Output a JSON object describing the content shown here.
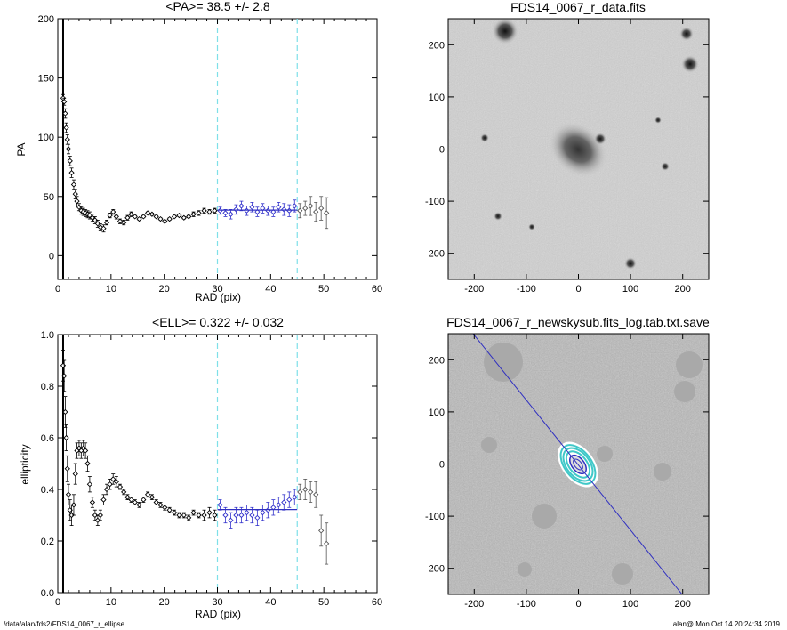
{
  "footer": {
    "left": "/data/alan/fds2/FDS14_0067_r_ellipse",
    "right": "alan@  Mon Oct 14 20:24:34 2019"
  },
  "colors": {
    "fit_line": "#3030c0",
    "range_line": "#7ee0e8",
    "contour": "#40c8c8",
    "marker": "#000000",
    "fit_marker": "#3333cc"
  },
  "chart_data": [
    {
      "type": "scatter",
      "title": "<PA>=  38.5 +/-   2.8",
      "xlabel": "RAD (pix)",
      "ylabel": "PA",
      "xlim": [
        0,
        60
      ],
      "ylim": [
        -20,
        200
      ],
      "xticks": [
        "0",
        "10",
        "20",
        "30",
        "40",
        "50",
        "60"
      ],
      "yticks": [
        "0",
        "50",
        "100",
        "150",
        "200"
      ],
      "vlines": [
        30,
        45
      ],
      "fit": {
        "x": [
          30,
          45
        ],
        "y": 38.5
      },
      "series": [
        {
          "x": [
            1.0,
            1.2,
            1.4,
            1.6,
            1.8,
            2.0,
            2.3,
            2.6,
            3.0,
            3.3,
            3.6,
            4.0,
            4.4,
            4.8,
            5.2,
            5.6,
            6.0,
            6.5,
            7.0,
            7.5,
            8.0,
            8.6,
            9.2,
            9.8,
            10.4,
            11.0,
            11.7,
            12.4,
            13.1,
            13.8,
            14.5,
            15.3,
            16.1,
            16.9,
            17.7,
            18.5,
            19.3,
            20.1,
            21.0,
            21.9,
            22.8,
            23.7,
            24.6,
            25.5,
            26.5,
            27.5,
            28.5,
            29.5
          ],
          "y": [
            133,
            130,
            120,
            108,
            98,
            90,
            80,
            70,
            60,
            52,
            46,
            41,
            38,
            37,
            36,
            35,
            34,
            32,
            30,
            27,
            24,
            23,
            28,
            34,
            37,
            33,
            29,
            28,
            32,
            35,
            33,
            31,
            33,
            36,
            35,
            33,
            31,
            29,
            31,
            33,
            34,
            32,
            33,
            35,
            36,
            38,
            37,
            38
          ],
          "err": [
            3,
            3,
            4,
            4,
            4,
            4,
            4,
            4,
            4,
            4,
            4,
            3,
            3,
            3,
            3,
            3,
            3,
            3,
            3,
            3,
            3,
            3,
            2,
            2,
            2,
            2,
            2,
            2,
            2,
            2,
            1,
            1,
            1,
            1,
            1,
            1,
            1,
            1,
            1,
            1,
            1,
            1,
            1,
            2,
            2,
            2,
            2,
            2
          ]
        },
        {
          "name": "",
          "x": [
            30.5,
            31.5,
            32.5,
            33.5,
            34.5,
            35.5,
            36.5,
            37.5,
            38.5,
            39.5,
            40.5,
            41.5,
            42.5,
            43.5,
            44.5
          ],
          "y": [
            38,
            36,
            35,
            39,
            42,
            38,
            41,
            37,
            40,
            38,
            37,
            41,
            39,
            38,
            42
          ],
          "err": [
            3,
            3,
            4,
            4,
            4,
            4,
            4,
            4,
            4,
            4,
            4,
            4,
            5,
            5,
            5
          ]
        },
        {
          "x": [
            45.5,
            46.5,
            47.5,
            48.5,
            49.5,
            50.5
          ],
          "y": [
            38,
            40,
            42,
            37,
            40,
            36
          ],
          "err": [
            6,
            6,
            8,
            8,
            10,
            13
          ]
        }
      ]
    },
    {
      "type": "scatter",
      "title": "<ELL>= 0.322 +/-  0.032",
      "xlabel": "RAD (pix)",
      "ylabel": "ellipticity",
      "xlim": [
        0,
        60
      ],
      "ylim": [
        0.0,
        1.0
      ],
      "xticks": [
        "0",
        "10",
        "20",
        "30",
        "40",
        "50",
        "60"
      ],
      "yticks": [
        "0.0",
        "0.2",
        "0.4",
        "0.6",
        "0.8",
        "1.0"
      ],
      "vlines": [
        30,
        45
      ],
      "fit": {
        "x": [
          30,
          45
        ],
        "y": 0.322
      },
      "series": [
        {
          "x": [
            1.0,
            1.2,
            1.4,
            1.6,
            1.8,
            2.0,
            2.3,
            2.6,
            3.0,
            3.3,
            3.6,
            4.0,
            4.4,
            4.8,
            5.2,
            5.6,
            6.0,
            6.5,
            7.0,
            7.5,
            8.0,
            8.6,
            9.2,
            9.8,
            10.4,
            11.0,
            11.7,
            12.4,
            13.1,
            13.8,
            14.5,
            15.3,
            16.1,
            16.9,
            17.7,
            18.5,
            19.3,
            20.1,
            21.0,
            21.9,
            22.8,
            23.7,
            24.6,
            25.5,
            26.5,
            27.5,
            28.5,
            29.5
          ],
          "y": [
            0.88,
            0.84,
            0.7,
            0.6,
            0.48,
            0.38,
            0.32,
            0.3,
            0.34,
            0.46,
            0.55,
            0.56,
            0.55,
            0.56,
            0.55,
            0.5,
            0.42,
            0.35,
            0.3,
            0.28,
            0.3,
            0.36,
            0.4,
            0.42,
            0.44,
            0.43,
            0.41,
            0.39,
            0.37,
            0.36,
            0.35,
            0.34,
            0.36,
            0.38,
            0.37,
            0.35,
            0.34,
            0.33,
            0.32,
            0.31,
            0.3,
            0.3,
            0.29,
            0.31,
            0.3,
            0.3,
            0.31,
            0.3
          ],
          "err": [
            0.06,
            0.06,
            0.06,
            0.05,
            0.05,
            0.04,
            0.04,
            0.04,
            0.04,
            0.04,
            0.03,
            0.03,
            0.03,
            0.03,
            0.03,
            0.03,
            0.03,
            0.02,
            0.02,
            0.02,
            0.02,
            0.02,
            0.02,
            0.02,
            0.02,
            0.02,
            0.01,
            0.01,
            0.01,
            0.01,
            0.01,
            0.01,
            0.01,
            0.01,
            0.01,
            0.01,
            0.01,
            0.01,
            0.01,
            0.01,
            0.01,
            0.01,
            0.01,
            0.01,
            0.01,
            0.02,
            0.02,
            0.02
          ]
        },
        {
          "name": "",
          "x": [
            30.5,
            31.5,
            32.5,
            33.5,
            34.5,
            35.5,
            36.5,
            37.5,
            38.5,
            39.5,
            40.5,
            41.5,
            42.5,
            43.5,
            44.5
          ],
          "y": [
            0.34,
            0.3,
            0.28,
            0.3,
            0.3,
            0.31,
            0.3,
            0.29,
            0.31,
            0.32,
            0.33,
            0.34,
            0.35,
            0.36,
            0.37
          ],
          "err": [
            0.02,
            0.03,
            0.03,
            0.03,
            0.03,
            0.03,
            0.03,
            0.03,
            0.03,
            0.03,
            0.03,
            0.03,
            0.03,
            0.03,
            0.03
          ]
        },
        {
          "x": [
            45.5,
            46.5,
            47.5,
            48.5,
            49.5,
            50.5
          ],
          "y": [
            0.39,
            0.4,
            0.39,
            0.38,
            0.24,
            0.19
          ],
          "err": [
            0.03,
            0.04,
            0.04,
            0.05,
            0.06,
            0.08
          ]
        }
      ]
    },
    {
      "type": "heatmap",
      "title": "FDS14_0067_r_data.fits",
      "xlim": [
        -250,
        250
      ],
      "ylim": [
        -250,
        250
      ],
      "xticks": [
        "-200",
        "-100",
        "0",
        "100",
        "200"
      ],
      "yticks": [
        "-200",
        "-100",
        "0",
        "100",
        "200"
      ]
    },
    {
      "type": "heatmap",
      "title": "FDS14_0067_r_newskysub.fits_log.tab.txt.save",
      "xlim": [
        -250,
        250
      ],
      "ylim": [
        -250,
        250
      ],
      "xticks": [
        "-200",
        "-100",
        "0",
        "100",
        "200"
      ],
      "yticks": [
        "-200",
        "-100",
        "0",
        "100",
        "200"
      ]
    }
  ]
}
